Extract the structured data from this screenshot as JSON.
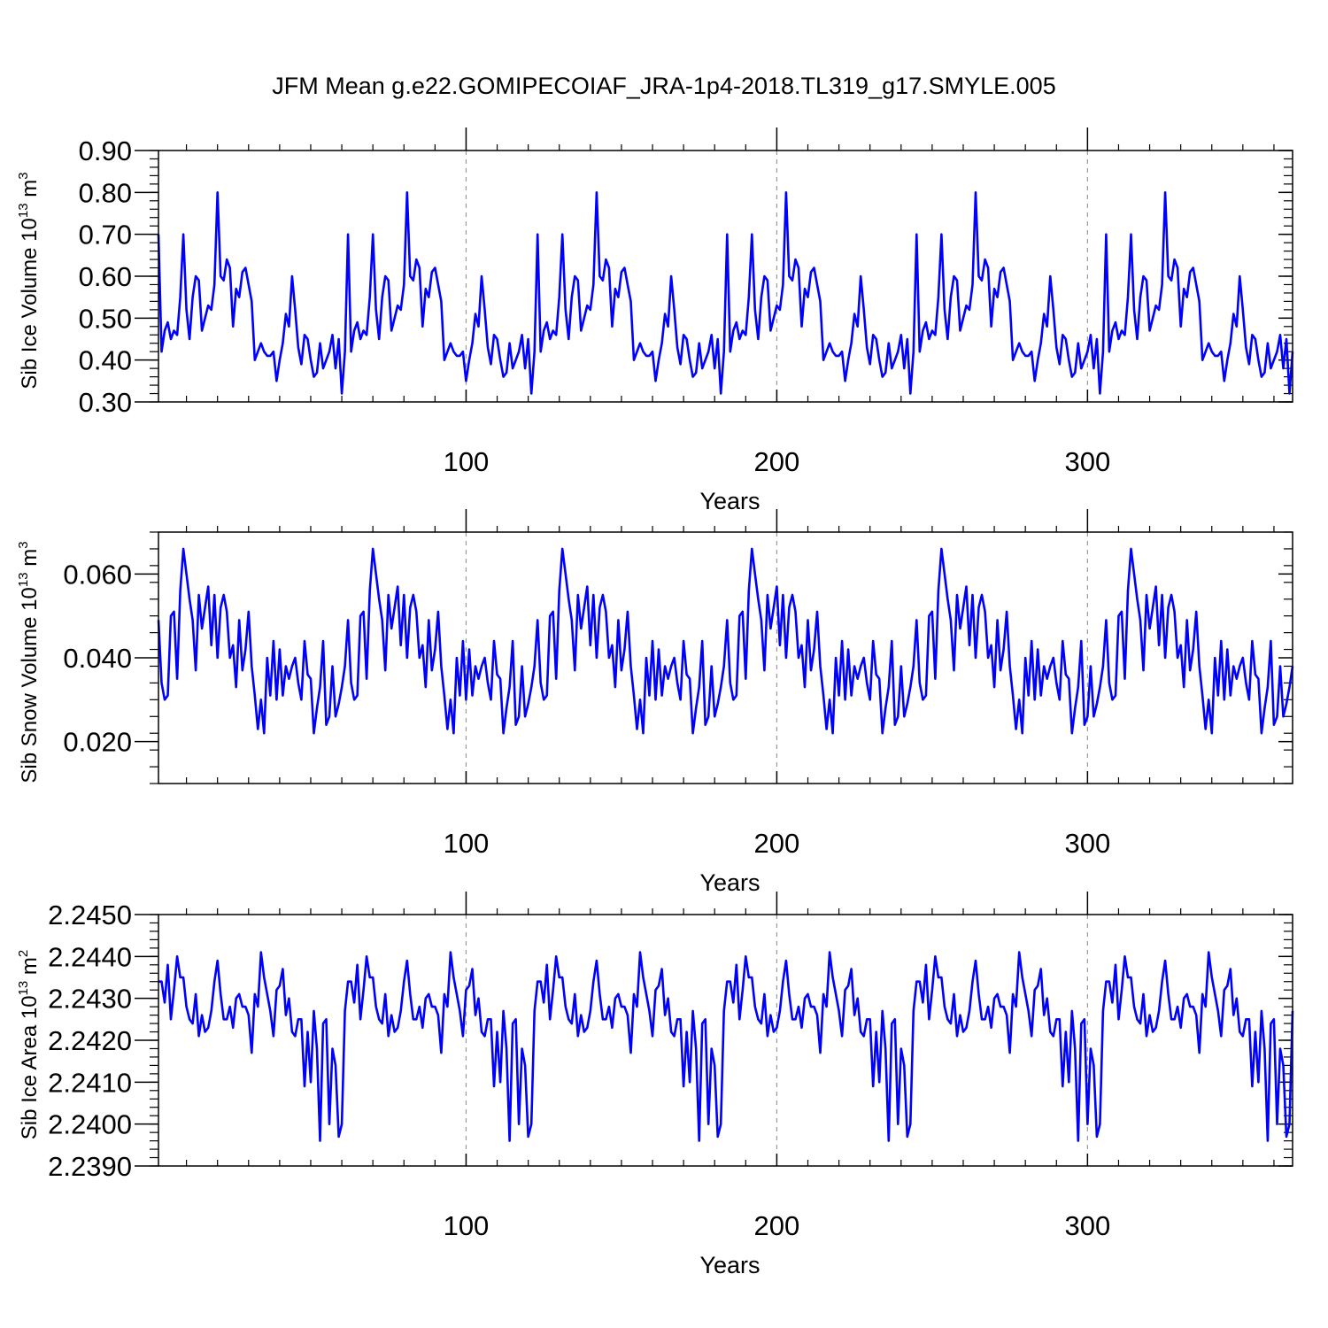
{
  "figure": {
    "title": "JFM Mean g.e22.GOMIPECOIAF_JRA-1p4-2018.TL319_g17.SMYLE.005"
  },
  "colors": {
    "series_line": "#0000ff",
    "axis": "#000000",
    "gridline": "#999999"
  },
  "chart_data": [
    {
      "type": "line",
      "ylabel": "Sib Ice Volume 10",
      "ylabel_exp": "13",
      "ylabel_unit": " m",
      "ylabel_unit_exp": "3",
      "xlabel": "Years",
      "xlim": [
        1,
        366
      ],
      "ylim": [
        0.3,
        0.9
      ],
      "yticks": [
        0.3,
        0.4,
        0.5,
        0.6,
        0.7,
        0.8,
        0.9
      ],
      "ytick_labels": [
        "0.30",
        "0.40",
        "0.50",
        "0.60",
        "0.70",
        "0.80",
        "0.90"
      ],
      "xticks": [
        100,
        200,
        300
      ],
      "xtick_labels": [
        "100",
        "200",
        "300"
      ],
      "period": 61,
      "base_cycle": [
        0.7,
        0.42,
        0.47,
        0.49,
        0.45,
        0.47,
        0.46,
        0.55,
        0.7,
        0.52,
        0.45,
        0.55,
        0.6,
        0.59,
        0.47,
        0.5,
        0.53,
        0.52,
        0.58,
        0.8,
        0.6,
        0.59,
        0.64,
        0.62,
        0.48,
        0.57,
        0.55,
        0.61,
        0.62,
        0.58,
        0.54,
        0.4,
        0.42,
        0.44,
        0.42,
        0.41,
        0.41,
        0.42,
        0.35,
        0.4,
        0.44,
        0.51,
        0.48,
        0.6,
        0.52,
        0.43,
        0.39,
        0.46,
        0.45,
        0.4,
        0.36,
        0.37,
        0.44,
        0.38,
        0.4,
        0.42,
        0.46,
        0.38,
        0.45,
        0.32,
        0.42
      ]
    },
    {
      "type": "line",
      "ylabel": "Sib Snow Volume 10",
      "ylabel_exp": "13",
      "ylabel_unit": " m",
      "ylabel_unit_exp": "3",
      "xlabel": "Years",
      "xlim": [
        1,
        366
      ],
      "ylim": [
        0.01,
        0.07
      ],
      "yticks": [
        0.02,
        0.04,
        0.06
      ],
      "ytick_labels": [
        "0.020",
        "0.040",
        "0.060"
      ],
      "xticks": [
        100,
        200,
        300
      ],
      "xtick_labels": [
        "100",
        "200",
        "300"
      ],
      "period": 61,
      "base_cycle": [
        0.049,
        0.034,
        0.03,
        0.031,
        0.05,
        0.051,
        0.035,
        0.056,
        0.066,
        0.06,
        0.054,
        0.049,
        0.037,
        0.055,
        0.047,
        0.052,
        0.057,
        0.043,
        0.055,
        0.04,
        0.052,
        0.055,
        0.051,
        0.04,
        0.043,
        0.033,
        0.049,
        0.037,
        0.042,
        0.051,
        0.038,
        0.031,
        0.023,
        0.03,
        0.022,
        0.04,
        0.031,
        0.044,
        0.03,
        0.042,
        0.031,
        0.038,
        0.035,
        0.038,
        0.04,
        0.034,
        0.03,
        0.044,
        0.036,
        0.035,
        0.022,
        0.028,
        0.033,
        0.044,
        0.024,
        0.026,
        0.038,
        0.026,
        0.029,
        0.033,
        0.038
      ]
    },
    {
      "type": "line",
      "ylabel": "Sib Ice Area 10",
      "ylabel_exp": "13",
      "ylabel_unit": " m",
      "ylabel_unit_exp": "2",
      "xlabel": "Years",
      "xlim": [
        1,
        366
      ],
      "ylim": [
        2.239,
        2.245
      ],
      "yticks": [
        2.239,
        2.24,
        2.241,
        2.242,
        2.243,
        2.244,
        2.245
      ],
      "ytick_labels": [
        "2.2390",
        "2.2400",
        "2.2410",
        "2.2420",
        "2.2430",
        "2.2440",
        "2.2450"
      ],
      "xticks": [
        100,
        200,
        300
      ],
      "xtick_labels": [
        "100",
        "200",
        "300"
      ],
      "period": 61,
      "base_cycle": [
        2.2434,
        2.2434,
        2.2429,
        2.2438,
        2.2425,
        2.2432,
        2.244,
        2.2435,
        2.2435,
        2.2428,
        2.2425,
        2.2424,
        2.2431,
        2.2421,
        2.2426,
        2.2422,
        2.2423,
        2.2427,
        2.2434,
        2.2439,
        2.2431,
        2.2425,
        2.2425,
        2.2428,
        2.2423,
        2.243,
        2.2431,
        2.2428,
        2.2428,
        2.2426,
        2.2417,
        2.2431,
        2.2428,
        2.2441,
        2.2435,
        2.2431,
        2.2427,
        2.2421,
        2.2432,
        2.2433,
        2.2437,
        2.2426,
        2.243,
        2.2422,
        2.2421,
        2.2425,
        2.2425,
        2.2409,
        2.2422,
        2.241,
        2.2427,
        2.2418,
        2.2396,
        2.2424,
        2.2425,
        2.24,
        2.2418,
        2.2414,
        2.2397,
        2.24,
        2.2427
      ]
    }
  ]
}
